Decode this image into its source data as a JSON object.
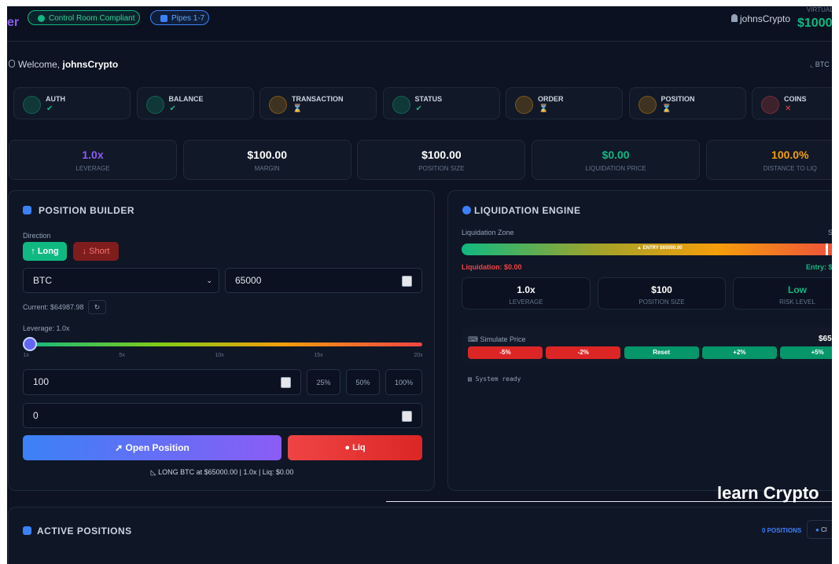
{
  "header": {
    "logo": "er",
    "badges": [
      "Control Room Compliant",
      "Pipes 1-7"
    ],
    "user": "johnsCrypto",
    "balance_label": "VIRTUAL",
    "balance": "$1000"
  },
  "welcome": {
    "greeting": "Welcome,",
    "name": "johnsCrypto",
    "chart_link": "BTC"
  },
  "pipes": [
    {
      "label": "AUTH",
      "status": "✔"
    },
    {
      "label": "BALANCE",
      "status": "✔"
    },
    {
      "label": "TRANSACTION",
      "status": "⌛"
    },
    {
      "label": "STATUS",
      "status": "✔"
    },
    {
      "label": "ORDER",
      "status": "⌛"
    },
    {
      "label": "POSITION",
      "status": "⌛"
    },
    {
      "label": "COINS",
      "status": "✕"
    }
  ],
  "stats": [
    {
      "value": "1.0x",
      "label": "LEVERAGE"
    },
    {
      "value": "$100.00",
      "label": "MARGIN"
    },
    {
      "value": "$100.00",
      "label": "POSITION SIZE"
    },
    {
      "value": "$0.00",
      "label": "LIQUIDATION PRICE"
    },
    {
      "value": "100.0%",
      "label": "DISTANCE TO LIQ"
    }
  ],
  "position_builder": {
    "title": "POSITION BUILDER",
    "direction_label": "Direction",
    "long": "Long",
    "short": "Short",
    "symbol": "BTC",
    "entry_price": "65000",
    "current": "Current: $64987.98",
    "leverage_label": "Leverage: 1.0x",
    "leverage_marks": [
      "1x",
      "5x",
      "10x",
      "15x",
      "20x"
    ],
    "margin": "100",
    "quick_amounts": [
      "25%",
      "50%",
      "100%"
    ],
    "stop_loss": "0",
    "open_button": "Open Position",
    "liq_button": "Liq",
    "summary": "LONG BTC at $65000.00 | 1.0x | Liq: $0.00"
  },
  "liquidation_engine": {
    "title": "LIQUIDATION ENGINE",
    "zone_label": "Liquidation Zone",
    "zone_right": "S",
    "entry_marker": "▲ ENTRY $65000.00",
    "liquidation": "Liquidation: $0.00",
    "entry": "Entry: $",
    "stats": [
      {
        "value": "1.0x",
        "label": "LEVERAGE"
      },
      {
        "value": "$100",
        "label": "POSITION SIZE"
      },
      {
        "value": "Low",
        "label": "RISK LEVEL"
      }
    ],
    "simulate_label": "Simulate Price",
    "simulate_price": "$65",
    "simulate_buttons": [
      "-5%",
      "-2%",
      "Reset",
      "+2%",
      "+5%"
    ],
    "log": "System ready"
  },
  "watermark": "learn Crypto",
  "active_positions": {
    "title": "ACTIVE POSITIONS",
    "count": "0 POSITIONS",
    "button": "Cl"
  }
}
